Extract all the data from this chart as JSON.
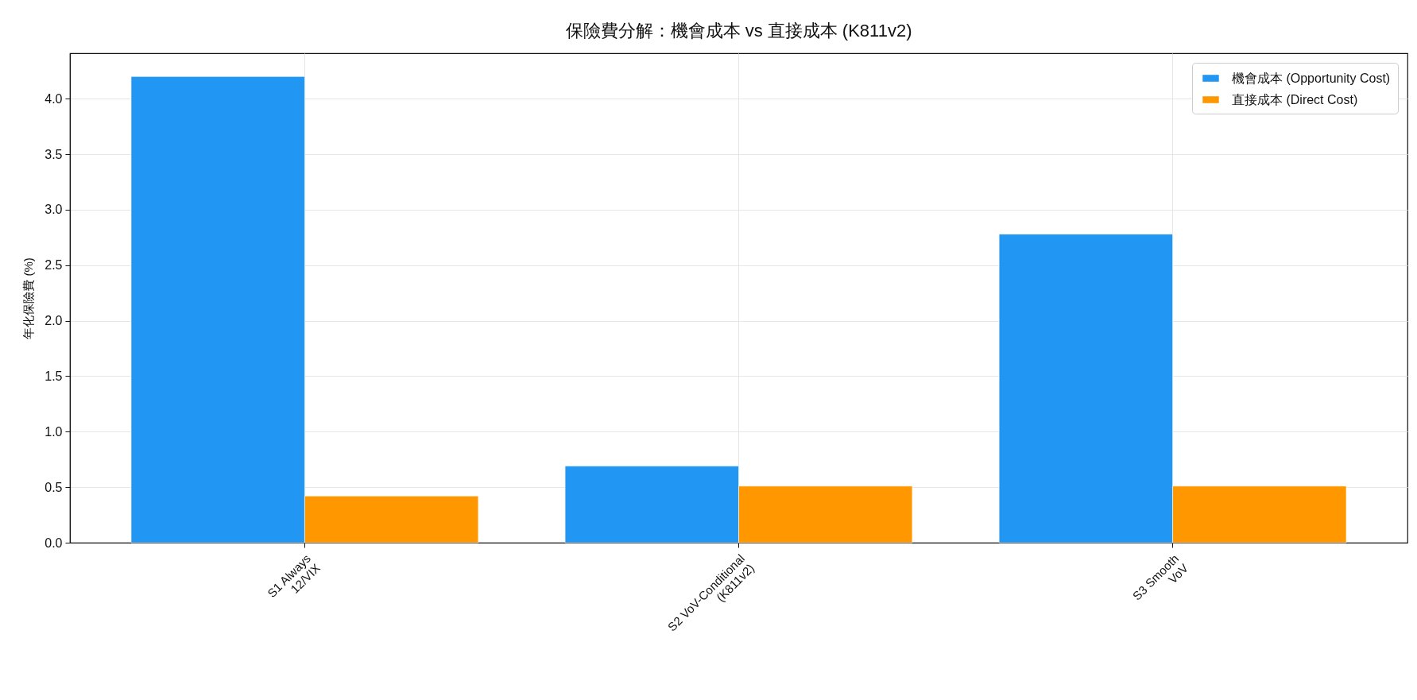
{
  "chart_data": {
    "type": "bar",
    "title": "保險費分解：機會成本 vs 直接成本 (K811v2)",
    "ylabel": "年化保險費 (%)",
    "categories": [
      "S1 Always\n12/VIX",
      "S2 VoV-Conditional\n(K811v2)",
      "S3 Smooth\nVoV"
    ],
    "series": [
      {
        "name": "機會成本 (Opportunity Cost)",
        "color": "#2196f3",
        "values": [
          4.2,
          0.69,
          2.78
        ]
      },
      {
        "name": "直接成本 (Direct Cost)",
        "color": "#ff9800",
        "values": [
          0.42,
          0.51,
          0.51
        ]
      }
    ],
    "ylim": [
      0,
      4.41
    ],
    "yticks": [
      {
        "value": 0,
        "label": "0.0"
      },
      {
        "value": 0.5,
        "label": "0.5"
      },
      {
        "value": 1,
        "label": "1.0"
      },
      {
        "value": 1.5,
        "label": "1.5"
      },
      {
        "value": 2,
        "label": "2.0"
      },
      {
        "value": 2.5,
        "label": "2.5"
      },
      {
        "value": 3,
        "label": "3.0"
      },
      {
        "value": 3.5,
        "label": "3.5"
      },
      {
        "value": 4,
        "label": "4.0"
      }
    ],
    "grid": true,
    "legend": "top right"
  }
}
